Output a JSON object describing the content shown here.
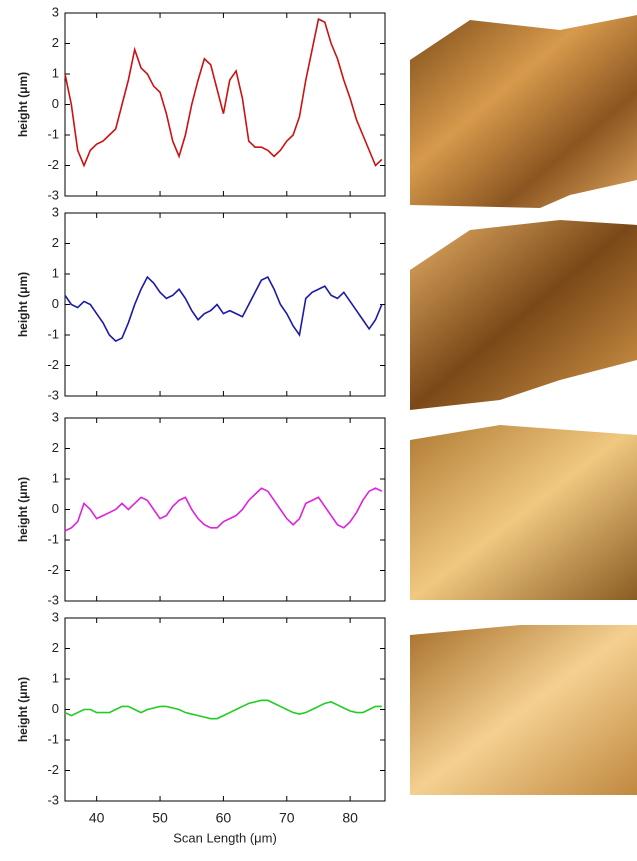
{
  "chart_data": [
    {
      "type": "line",
      "color": "#cc1111",
      "ylabel": "height (μm)",
      "x": [
        35,
        36,
        37,
        38,
        39,
        40,
        41,
        42,
        43,
        44,
        45,
        46,
        47,
        48,
        49,
        50,
        51,
        52,
        53,
        54,
        55,
        56,
        57,
        58,
        59,
        60,
        61,
        62,
        63,
        64,
        65,
        66,
        67,
        68,
        69,
        70,
        71,
        72,
        73,
        74,
        75,
        76,
        77,
        78,
        79,
        80,
        81,
        82,
        83,
        84,
        85
      ],
      "values": [
        1.0,
        0,
        -1.5,
        -2.0,
        -1.5,
        -1.3,
        -1.2,
        -1.0,
        -0.8,
        0,
        0.8,
        1.8,
        1.2,
        1.0,
        0.6,
        0.4,
        -0.3,
        -1.2,
        -1.7,
        -1.0,
        0,
        0.8,
        1.5,
        1.3,
        0.5,
        -0.3,
        0.8,
        1.1,
        0.2,
        -1.2,
        -1.4,
        -1.4,
        -1.5,
        -1.7,
        -1.5,
        -1.2,
        -1.0,
        -0.4,
        0.8,
        1.8,
        2.8,
        2.7,
        2.0,
        1.5,
        0.8,
        0.2,
        -0.5,
        -1.0,
        -1.5,
        -2.0,
        -1.8
      ],
      "xlim": [
        35,
        85.5
      ],
      "xticks": [
        40,
        50,
        60,
        70,
        80
      ],
      "ylim": [
        -3,
        3
      ],
      "yticks": [
        -3,
        -2,
        -1,
        0,
        1,
        2,
        3
      ]
    },
    {
      "type": "line",
      "color": "#1a1aa8",
      "ylabel": "height (μm)",
      "x": [
        35,
        36,
        37,
        38,
        39,
        40,
        41,
        42,
        43,
        44,
        45,
        46,
        47,
        48,
        49,
        50,
        51,
        52,
        53,
        54,
        55,
        56,
        57,
        58,
        59,
        60,
        61,
        62,
        63,
        64,
        65,
        66,
        67,
        68,
        69,
        70,
        71,
        72,
        73,
        74,
        75,
        76,
        77,
        78,
        79,
        80,
        81,
        82,
        83,
        84,
        85
      ],
      "values": [
        0.3,
        0,
        -0.1,
        0.1,
        0,
        -0.3,
        -0.6,
        -1.0,
        -1.2,
        -1.1,
        -0.6,
        0,
        0.5,
        0.9,
        0.7,
        0.4,
        0.2,
        0.3,
        0.5,
        0.2,
        -0.2,
        -0.5,
        -0.3,
        -0.2,
        0,
        -0.3,
        -0.2,
        -0.3,
        -0.4,
        0,
        0.4,
        0.8,
        0.9,
        0.5,
        0,
        -0.3,
        -0.7,
        -1.0,
        0.2,
        0.4,
        0.5,
        0.6,
        0.3,
        0.2,
        0.4,
        0.1,
        -0.2,
        -0.5,
        -0.8,
        -0.5,
        0
      ],
      "xlim": [
        35,
        85.5
      ],
      "xticks": [
        40,
        50,
        60,
        70,
        80
      ],
      "ylim": [
        -3,
        3
      ],
      "yticks": [
        -3,
        -2,
        -1,
        0,
        1,
        2,
        3
      ]
    },
    {
      "type": "line",
      "color": "#dd22dd",
      "ylabel": "height (μm)",
      "x": [
        35,
        36,
        37,
        38,
        39,
        40,
        41,
        42,
        43,
        44,
        45,
        46,
        47,
        48,
        49,
        50,
        51,
        52,
        53,
        54,
        55,
        56,
        57,
        58,
        59,
        60,
        61,
        62,
        63,
        64,
        65,
        66,
        67,
        68,
        69,
        70,
        71,
        72,
        73,
        74,
        75,
        76,
        77,
        78,
        79,
        80,
        81,
        82,
        83,
        84,
        85
      ],
      "values": [
        -0.7,
        -0.6,
        -0.4,
        0.2,
        0,
        -0.3,
        -0.2,
        -0.1,
        0,
        0.2,
        0,
        0.2,
        0.4,
        0.3,
        0,
        -0.3,
        -0.2,
        0.1,
        0.3,
        0.4,
        0,
        -0.3,
        -0.5,
        -0.6,
        -0.6,
        -0.4,
        -0.3,
        -0.2,
        0,
        0.3,
        0.5,
        0.7,
        0.6,
        0.3,
        0,
        -0.3,
        -0.5,
        -0.3,
        0.2,
        0.3,
        0.4,
        0.1,
        -0.2,
        -0.5,
        -0.6,
        -0.4,
        -0.1,
        0.3,
        0.6,
        0.7,
        0.6
      ],
      "xlim": [
        35,
        85.5
      ],
      "xticks": [
        40,
        50,
        60,
        70,
        80
      ],
      "ylim": [
        -3,
        3
      ],
      "yticks": [
        -3,
        -2,
        -1,
        0,
        1,
        2,
        3
      ]
    },
    {
      "type": "line",
      "color": "#22cc22",
      "ylabel": "height (μm)",
      "xlabel": "Scan Length (μm)",
      "x": [
        35,
        36,
        37,
        38,
        39,
        40,
        41,
        42,
        43,
        44,
        45,
        46,
        47,
        48,
        49,
        50,
        51,
        52,
        53,
        54,
        55,
        56,
        57,
        58,
        59,
        60,
        61,
        62,
        63,
        64,
        65,
        66,
        67,
        68,
        69,
        70,
        71,
        72,
        73,
        74,
        75,
        76,
        77,
        78,
        79,
        80,
        81,
        82,
        83,
        84,
        85
      ],
      "values": [
        -0.1,
        -0.2,
        -0.1,
        0,
        0,
        -0.1,
        -0.1,
        -0.1,
        0,
        0.1,
        0.1,
        0,
        -0.1,
        0,
        0.05,
        0.1,
        0.1,
        0.05,
        0,
        -0.1,
        -0.15,
        -0.2,
        -0.25,
        -0.3,
        -0.3,
        -0.2,
        -0.1,
        0,
        0.1,
        0.2,
        0.25,
        0.3,
        0.3,
        0.2,
        0.1,
        0,
        -0.1,
        -0.15,
        -0.1,
        0,
        0.1,
        0.2,
        0.25,
        0.15,
        0.05,
        -0.05,
        -0.1,
        -0.1,
        0,
        0.1,
        0.1
      ],
      "xlim": [
        35,
        85.5
      ],
      "xticks": [
        40,
        50,
        60,
        70,
        80
      ],
      "ylim": [
        -3,
        3
      ],
      "yticks": [
        -3,
        -2,
        -1,
        0,
        1,
        2,
        3
      ]
    }
  ]
}
